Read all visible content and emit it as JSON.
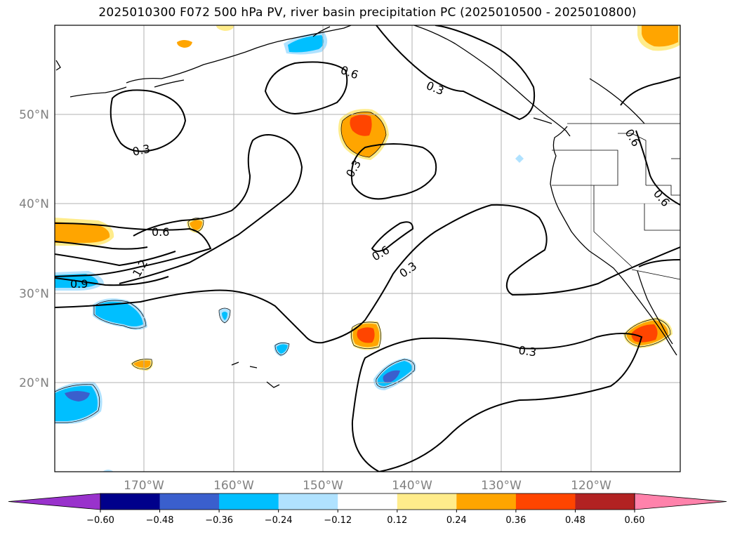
{
  "title": "2025010300 F072 500 hPa PV, river basin precipitation PC (2025010500 - 2025010800)",
  "lat_labels": [
    "50°N",
    "40°N",
    "30°N",
    "20°N"
  ],
  "lon_labels": [
    "170°W",
    "160°W",
    "150°W",
    "140°W",
    "130°W",
    "120°W"
  ],
  "contour_labels": [
    "0.6",
    "0.3",
    "0.3",
    "0.3",
    "0.6",
    "0.6",
    "1.2",
    "0.9",
    "0.6",
    "0.3",
    "0.3",
    "0.6"
  ],
  "colorbar": {
    "ticks": [
      "−0.60",
      "−0.48",
      "−0.36",
      "−0.24",
      "−0.12",
      "0.12",
      "0.24",
      "0.36",
      "0.48",
      "0.60"
    ],
    "colors": [
      "#9932cc",
      "#00008b",
      "#3a5fcd",
      "#00bfff",
      "#b0e2ff",
      "#ffffff",
      "#ffec8b",
      "#ffa500",
      "#ff4500",
      "#b22222",
      "#ff82ab"
    ]
  }
}
